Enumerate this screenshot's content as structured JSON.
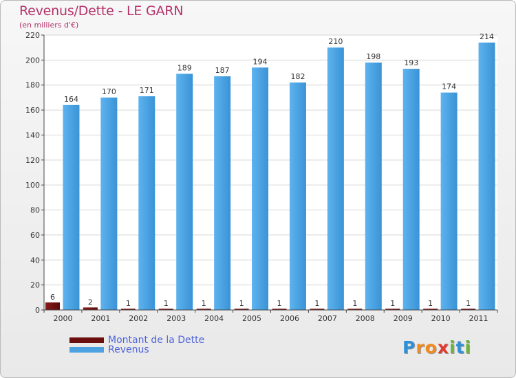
{
  "chart_data": {
    "type": "bar",
    "title": "Revenus/Dette - LE GARN",
    "subtitle": "(en milliers d'€)",
    "categories": [
      "2000",
      "2001",
      "2002",
      "2003",
      "2004",
      "2005",
      "2006",
      "2007",
      "2008",
      "2009",
      "2010",
      "2011"
    ],
    "series": [
      {
        "name": "Montant de la Dette",
        "color": "#6b0e0e",
        "values": [
          6,
          2,
          1,
          1,
          1,
          1,
          1,
          1,
          1,
          1,
          1,
          1
        ]
      },
      {
        "name": "Revenus",
        "color": "#4da3e2",
        "values": [
          164,
          170,
          171,
          189,
          187,
          194,
          182,
          210,
          198,
          193,
          174,
          214
        ]
      }
    ],
    "ylim": [
      0,
      220
    ],
    "yticks": [
      0,
      20,
      40,
      60,
      80,
      100,
      120,
      140,
      160,
      180,
      200,
      220
    ],
    "grid": true,
    "legend_position": "bottom-left"
  },
  "logo": {
    "text": "Proxiti",
    "letters": [
      {
        "ch": "P",
        "color": "#2f8fd8"
      },
      {
        "ch": "r",
        "color": "#f28b1f"
      },
      {
        "ch": "o",
        "color": "#f28b1f"
      },
      {
        "ch": "x",
        "color": "#e23a2e"
      },
      {
        "ch": "i",
        "color": "#6cb33f"
      },
      {
        "ch": "t",
        "color": "#2f8fd8"
      },
      {
        "ch": "i",
        "color": "#6cb33f"
      }
    ]
  }
}
